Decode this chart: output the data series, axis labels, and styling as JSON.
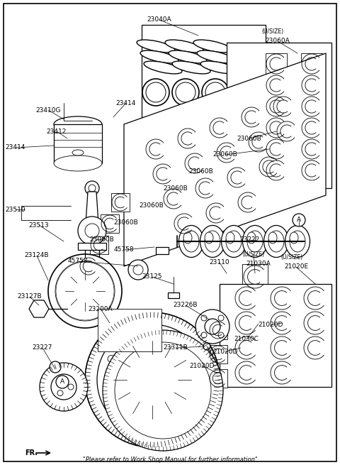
{
  "background_color": "#ffffff",
  "border_color": "#000000",
  "text_color": "#000000",
  "fig_width": 4.8,
  "fig_height": 6.55,
  "dpi": 100,
  "bottom_text": "\"Please refer to Work Shop Manual for further information\"",
  "fr_label": "FR.",
  "labels": [
    [
      "23040A",
      225,
      28
    ],
    [
      "(U/SIZE)",
      385,
      45
    ],
    [
      "23060A",
      392,
      58
    ],
    [
      "23410G",
      68,
      155
    ],
    [
      "23414",
      178,
      145
    ],
    [
      "23412",
      80,
      185
    ],
    [
      "23414",
      22,
      208
    ],
    [
      "23060B",
      352,
      195
    ],
    [
      "23060B",
      318,
      218
    ],
    [
      "23060B",
      284,
      242
    ],
    [
      "23060B",
      248,
      265
    ],
    [
      "23060B",
      214,
      290
    ],
    [
      "23060B",
      178,
      314
    ],
    [
      "23060B",
      144,
      338
    ],
    [
      "23510",
      22,
      295
    ],
    [
      "23513",
      55,
      317
    ],
    [
      "23222",
      352,
      338
    ],
    [
      "A",
      422,
      310
    ],
    [
      "45758",
      175,
      352
    ],
    [
      "45758",
      110,
      368
    ],
    [
      "23110",
      310,
      370
    ],
    [
      "(U/SIZE)",
      358,
      358
    ],
    [
      "21030A",
      365,
      372
    ],
    [
      "(U/SIZE)",
      412,
      362
    ],
    [
      "21020E",
      418,
      376
    ],
    [
      "23125",
      215,
      390
    ],
    [
      "23124B",
      52,
      360
    ],
    [
      "23127B",
      42,
      418
    ],
    [
      "23200A",
      142,
      435
    ],
    [
      "23226B",
      262,
      430
    ],
    [
      "23311B",
      248,
      490
    ],
    [
      "21020D",
      285,
      515
    ],
    [
      "21020D",
      318,
      495
    ],
    [
      "21030C",
      348,
      478
    ],
    [
      "21020D",
      382,
      458
    ],
    [
      "23227",
      60,
      490
    ],
    [
      "A",
      88,
      538
    ]
  ]
}
